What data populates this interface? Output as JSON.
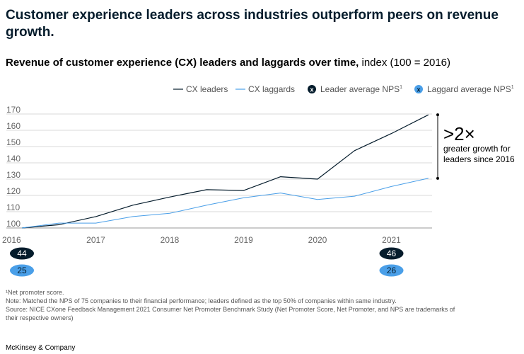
{
  "headline": "Customer experience leaders across industries outperform peers on revenue growth.",
  "subtitle_bold": "Revenue of customer experience (CX) leaders and laggards over time,",
  "subtitle_rest": " index (100 = 2016)",
  "legend": {
    "leaders": "CX leaders",
    "laggards": "CX laggards",
    "leader_nps": "Leader average NPS",
    "laggard_nps": "Laggard average NPS",
    "footnote_mark": "1",
    "marker_glyph": "x"
  },
  "colors": {
    "leaders": "#051c2c",
    "laggards": "#4a9fe8",
    "grid": "#d9d9d9"
  },
  "chart_data": {
    "type": "line",
    "title": "Revenue of customer experience (CX) leaders and laggards over time, index (100 = 2016)",
    "xlabel": "",
    "ylabel": "",
    "xlim": [
      2016,
      2021.55
    ],
    "ylim": [
      100,
      170
    ],
    "yticks": [
      "100",
      "110",
      "120",
      "130",
      "140",
      "150",
      "160",
      "170"
    ],
    "xticks": [
      "2016",
      "2017",
      "2018",
      "2019",
      "2020",
      "2021"
    ],
    "grid": true,
    "legend_position": "top-right",
    "series": [
      {
        "name": "CX leaders",
        "x": [
          2016,
          2016.5,
          2017,
          2017.5,
          2018,
          2018.5,
          2019,
          2019.5,
          2020,
          2020.5,
          2021,
          2021.5
        ],
        "values": [
          100,
          102,
          107,
          114,
          119,
          123.5,
          123,
          131.5,
          130,
          147.5,
          158,
          169.5
        ]
      },
      {
        "name": "CX laggards",
        "x": [
          2016,
          2016.5,
          2017,
          2017.5,
          2018,
          2018.5,
          2019,
          2019.5,
          2020,
          2020.5,
          2021,
          2021.5
        ],
        "values": [
          100,
          103,
          103,
          107,
          109,
          114,
          118.5,
          121.5,
          117.5,
          119.5,
          125.5,
          130.5
        ]
      }
    ],
    "nps": {
      "leader": {
        "2016": "44",
        "2021": "46"
      },
      "laggard": {
        "2016": "25",
        "2021": "26"
      }
    },
    "annotation": {
      "big": ">2×",
      "line1": "greater growth for",
      "line2": "leaders since 2016"
    }
  },
  "footnotes": {
    "f1": "¹Net promoter score.",
    "note": "Note: Matched the NPS of 75 companies to their financial performance; leaders defined as the top 50% of companies within same industry.",
    "source1": "Source: NICE CXone Feedback Management 2021 Consumer Net Promoter Benchmark Study (Net Promoter Score, Net Promoter, and NPS are trademarks of",
    "source2": "their respective owners)"
  },
  "brand": "McKinsey & Company"
}
